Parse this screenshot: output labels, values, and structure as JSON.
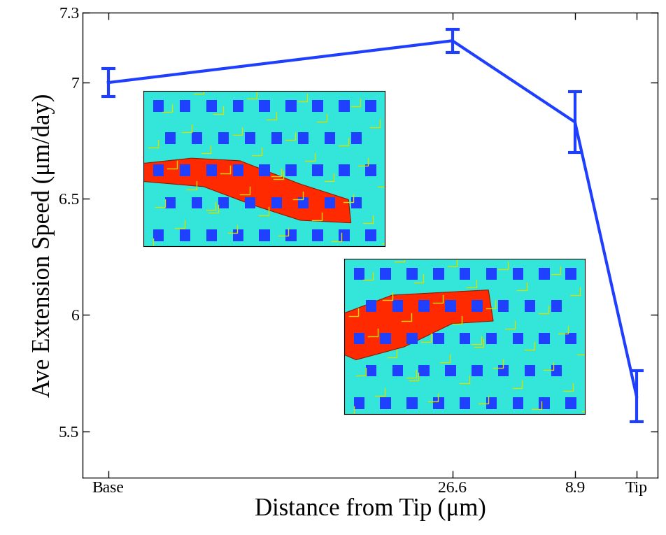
{
  "chart_data": {
    "type": "line",
    "x_label": "Distance from Tip (μm)",
    "y_label": "Ave Extension Speed (μm/day)",
    "x": [
      76.3,
      26.6,
      8.9,
      0
    ],
    "values": [
      7.0,
      7.18,
      6.83,
      5.65
    ],
    "errors": [
      0.06,
      0.05,
      0.13,
      0.11
    ],
    "color": "#1f3fff",
    "marker": "none",
    "line_style": "solid",
    "xlim": [
      80,
      -3
    ],
    "xticks": [
      {
        "value": 76.3,
        "label": "Base"
      },
      26.6,
      8.9,
      {
        "value": 0,
        "label": "Tip"
      }
    ],
    "ylim": [
      5.3,
      7.3
    ],
    "yticks": [
      5.5,
      6,
      6.5,
      7,
      7.3
    ],
    "grid": false
  }
}
